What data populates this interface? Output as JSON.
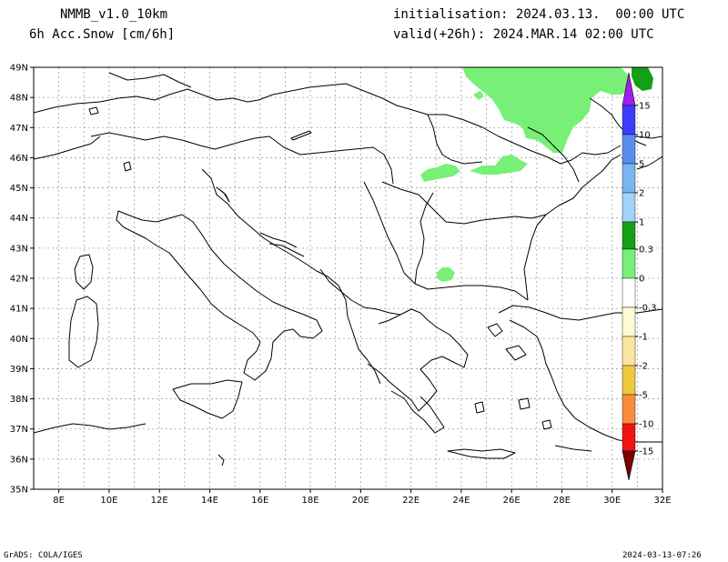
{
  "header": {
    "model": "NMMB_v1.0_10km",
    "parameter": "6h Acc.Snow [cm/6h]",
    "init": "initialisation: 2024.03.13.  00:00 UTC",
    "valid": "valid(+26h): 2024.MAR.14 02:00 UTC"
  },
  "footer": {
    "left": "GrADS: COLA/IGES",
    "right": "2024-03-13-07:26"
  },
  "map": {
    "lat_labels": [
      "35N",
      "36N",
      "37N",
      "38N",
      "39N",
      "40N",
      "41N",
      "42N",
      "43N",
      "44N",
      "45N",
      "46N",
      "47N",
      "48N",
      "49N"
    ],
    "lon_labels": [
      "8E",
      "10E",
      "12E",
      "14E",
      "16E",
      "18E",
      "20E",
      "22E",
      "24E",
      "26E",
      "28E",
      "30E",
      "32E"
    ]
  },
  "legend": {
    "labels": [
      "15",
      "10",
      "5",
      "2",
      "1",
      "0.3",
      "0",
      "-0.3",
      "-1",
      "-2",
      "-5",
      "-10",
      "-15"
    ],
    "colors": [
      "#a020f0",
      "#3c3cff",
      "#5a8cf0",
      "#78b4f0",
      "#a0d2fa",
      "#14a014",
      "#78f078",
      "#ffffff",
      "#fffad2",
      "#fae6a0",
      "#f0c83c",
      "#fa8c3c",
      "#f01414",
      "#c80000",
      "#780000"
    ]
  },
  "colors": {
    "snow_light": "#78f078",
    "snow_medium": "#14a014",
    "grid": "#a0a0a0",
    "coast": "#000000"
  }
}
